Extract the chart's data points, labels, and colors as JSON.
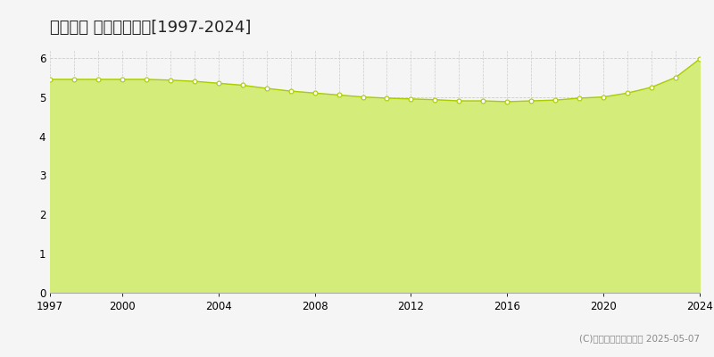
{
  "title": "宜野座村 基準地価推移[1997-2024]",
  "years": [
    1997,
    1998,
    1999,
    2000,
    2001,
    2002,
    2003,
    2004,
    2005,
    2006,
    2007,
    2008,
    2009,
    2010,
    2011,
    2012,
    2013,
    2014,
    2015,
    2016,
    2017,
    2018,
    2019,
    2020,
    2021,
    2022,
    2023,
    2024
  ],
  "values": [
    5.45,
    5.45,
    5.45,
    5.45,
    5.45,
    5.43,
    5.4,
    5.35,
    5.3,
    5.22,
    5.15,
    5.1,
    5.05,
    5.0,
    4.97,
    4.95,
    4.93,
    4.9,
    4.9,
    4.88,
    4.9,
    4.92,
    4.97,
    5.0,
    5.1,
    5.25,
    5.5,
    5.97
  ],
  "line_color": "#aacc00",
  "fill_color": "#d4ed7a",
  "marker_color": "#ffffff",
  "marker_edge_color": "#aacc00",
  "background_color": "#f5f5f5",
  "plot_bg_color": "#f5f5f5",
  "grid_color": "#cccccc",
  "ylim": [
    0,
    6.2
  ],
  "yticks": [
    0,
    1,
    2,
    3,
    4,
    5,
    6
  ],
  "xlim_left": 1997,
  "xlim_right": 2024,
  "xtick_years": [
    1997,
    2000,
    2004,
    2008,
    2012,
    2016,
    2020,
    2024
  ],
  "copyright_text": "(C)土地価格ドットコム 2025-05-07",
  "title_fontsize": 13,
  "tick_fontsize": 8.5,
  "legend_fontsize": 8.5,
  "copyright_fontsize": 7.5
}
